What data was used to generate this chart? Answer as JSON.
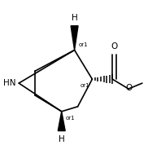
{
  "background": "#ffffff",
  "line_color": "#000000",
  "lw": 1.2,
  "fs": 6.5,
  "figsize": [
    1.82,
    1.78
  ],
  "dpi": 100,
  "xlim": [
    0,
    182
  ],
  "ylim": [
    0,
    178
  ]
}
